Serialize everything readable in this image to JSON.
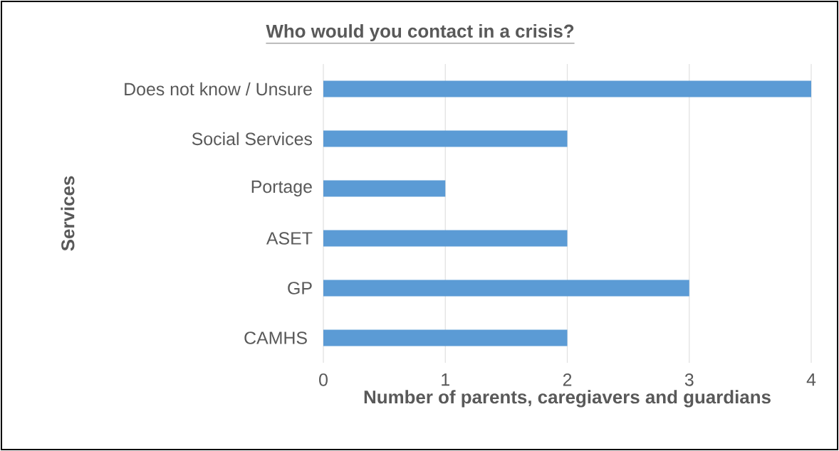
{
  "chart_data": {
    "type": "bar",
    "orientation": "horizontal",
    "title": "Who would you contact in a crisis?",
    "xlabel": "Number of parents, caregiavers and guardians",
    "ylabel": "Services",
    "categories": [
      "Does not know / Unsure",
      "Social Services",
      "Portage",
      "ASET",
      "GP",
      "CAMHS "
    ],
    "values": [
      4,
      2,
      1,
      2,
      3,
      2
    ],
    "color": "#5b9bd5",
    "xlim": [
      0,
      4
    ],
    "xticks": [
      0,
      1,
      2,
      3,
      4
    ],
    "grid": "x"
  }
}
